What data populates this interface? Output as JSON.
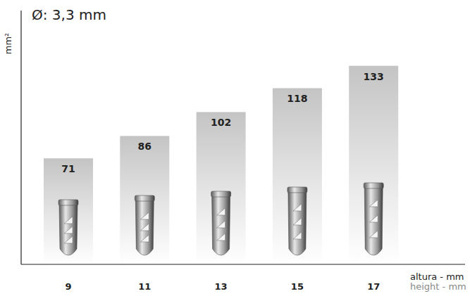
{
  "chart_data": {
    "type": "bar",
    "title": "Ø: 3,3 mm",
    "ylabel": "mm²",
    "xlabel": "altura - mm",
    "xlabel2": "height - mm",
    "categories": [
      "9",
      "11",
      "13",
      "15",
      "17"
    ],
    "values": [
      71,
      86,
      102,
      118,
      133
    ],
    "color": "#c4c4c4",
    "ylim": [
      0,
      170
    ],
    "data_labels": true,
    "tick_labels": "x",
    "grid": false
  }
}
